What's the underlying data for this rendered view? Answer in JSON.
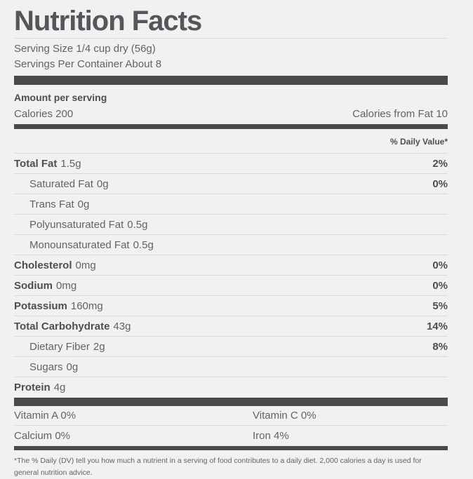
{
  "title": "Nutrition Facts",
  "serving": {
    "serving_size": "Serving Size  1/4 cup dry (56g)",
    "servings_per_container": "Servings Per Container About 8"
  },
  "calories_section": {
    "amount_per_serving": "Amount per serving",
    "calories": "Calories 200",
    "calories_from_fat": "Calories from Fat 10"
  },
  "daily_value_header": "% Daily Value*",
  "nutrients": [
    {
      "label": "Total Fat",
      "amount": "1.5g",
      "dv": "2%"
    },
    {
      "label": "Saturated Fat",
      "amount": "0g",
      "dv": "0%"
    },
    {
      "label": "Trans Fat",
      "amount": "0g",
      "dv": ""
    },
    {
      "label": "Polyunsaturated Fat",
      "amount": "0.5g",
      "dv": ""
    },
    {
      "label": "Monounsaturated Fat",
      "amount": "0.5g",
      "dv": ""
    },
    {
      "label": "Cholesterol",
      "amount": "0mg",
      "dv": "0%"
    },
    {
      "label": "Sodium",
      "amount": "0mg",
      "dv": "0%"
    },
    {
      "label": "Potassium",
      "amount": "160mg",
      "dv": "5%"
    },
    {
      "label": "Total Carbohydrate",
      "amount": "43g",
      "dv": "14%"
    },
    {
      "label": "Dietary Fiber",
      "amount": "2g",
      "dv": "8%"
    },
    {
      "label": "Sugars",
      "amount": "0g",
      "dv": ""
    },
    {
      "label": "Protein",
      "amount": "4g",
      "dv": ""
    }
  ],
  "micronutrients": [
    {
      "left": "Vitamin A 0%",
      "right": "Vitamin C 0%"
    },
    {
      "left": "Calcium 0%",
      "right": "Iron 4%"
    }
  ],
  "footnote": "*The % Daily (DV) tell you how much a nutrient in a serving of food contributes to a daily diet. 2,000 calories a day is used for general nutrition advice.",
  "colors": {
    "background": "#f1f1f2",
    "bar": "#4a4a4c",
    "divider": "#d8d8d9",
    "text_title": "#545659",
    "text_bold": "#4d4e50",
    "text_regular": "#626367"
  }
}
